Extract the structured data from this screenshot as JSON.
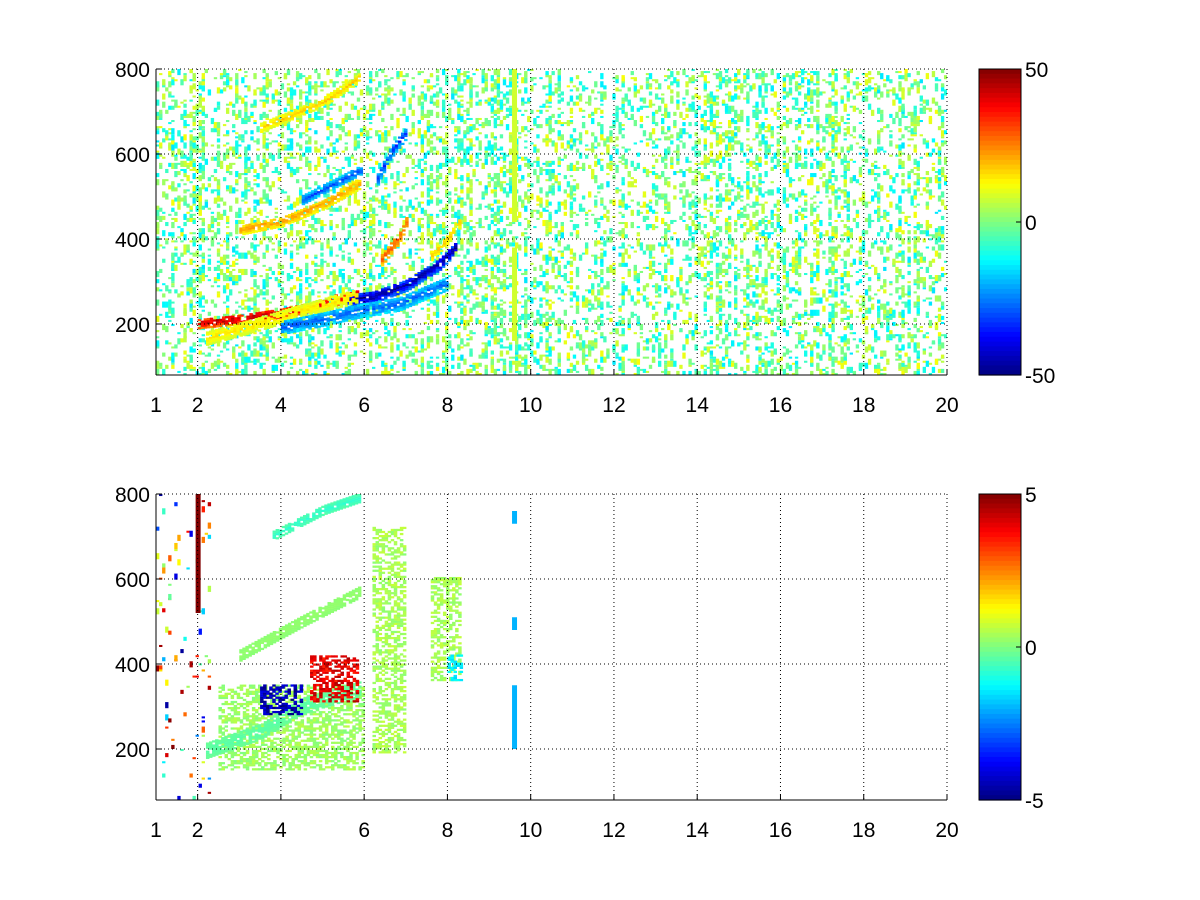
{
  "figure": {
    "background": "#ffffff",
    "colormap": "jet",
    "grid": true,
    "grid_style": "dotted"
  },
  "chart_data": [
    {
      "type": "heatmap",
      "title": "",
      "xlabel": "",
      "ylabel": "",
      "xlim": [
        1,
        20
      ],
      "ylim": [
        80,
        800
      ],
      "xticks": [
        1,
        2,
        4,
        6,
        8,
        10,
        12,
        14,
        16,
        18,
        20
      ],
      "xtick_labels": [
        "1",
        "2",
        "4",
        "6",
        "8",
        "10",
        "12",
        "14",
        "16",
        "18",
        "20"
      ],
      "yticks": [
        200,
        400,
        600,
        800
      ],
      "ytick_labels": [
        "200",
        "400",
        "600",
        "800"
      ],
      "clim": [
        -50,
        50
      ],
      "colorbar": {
        "ticks": [
          50,
          0,
          -50
        ],
        "labels": [
          "50",
          "0",
          "-50"
        ]
      },
      "features": [
        {
          "kind": "band",
          "x": [
            2.0,
            3.0,
            4.0,
            5.0,
            5.9
          ],
          "y": [
            200,
            210,
            225,
            245,
            270
          ],
          "value": 45,
          "width": 12
        },
        {
          "kind": "band",
          "x": [
            5.6,
            6.2,
            7.0,
            7.8,
            8.2
          ],
          "y": [
            255,
            262,
            290,
            340,
            380
          ],
          "value": -48,
          "width": 14
        },
        {
          "kind": "band",
          "x": [
            2.2,
            3.5,
            4.5,
            5.8
          ],
          "y": [
            165,
            200,
            230,
            265
          ],
          "value": 15,
          "width": 16
        },
        {
          "kind": "band",
          "x": [
            4.0,
            5.0,
            5.9,
            6.8,
            8.0
          ],
          "y": [
            190,
            210,
            230,
            245,
            295
          ],
          "value": -28,
          "width": 16
        },
        {
          "kind": "band",
          "x": [
            3.0,
            4.0,
            5.0,
            5.9
          ],
          "y": [
            420,
            440,
            480,
            530
          ],
          "value": 22,
          "width": 12
        },
        {
          "kind": "band",
          "x": [
            4.5,
            5.9
          ],
          "y": [
            490,
            560
          ],
          "value": -30,
          "width": 10
        },
        {
          "kind": "band",
          "x": [
            3.5,
            5.0,
            5.9
          ],
          "y": [
            660,
            720,
            780
          ],
          "value": 18,
          "width": 10
        },
        {
          "kind": "band",
          "x": [
            6.3,
            6.6,
            7.0
          ],
          "y": [
            540,
            600,
            650
          ],
          "value": -32,
          "width": 14
        },
        {
          "kind": "band",
          "x": [
            6.4,
            6.8,
            7.0
          ],
          "y": [
            350,
            400,
            440
          ],
          "value": 30,
          "width": 14
        },
        {
          "kind": "band",
          "x": [
            7.6,
            8.0,
            8.3
          ],
          "y": [
            360,
            400,
            440
          ],
          "value": 18,
          "width": 12
        },
        {
          "kind": "column",
          "x": 9.6,
          "y": [
            440,
            800
          ],
          "value": 8
        },
        {
          "kind": "column",
          "x": 9.6,
          "y": [
            160,
            380
          ],
          "value": 8
        }
      ],
      "noise": {
        "x_range": [
          1,
          20
        ],
        "value_range": [
          -15,
          12
        ],
        "density": 0.14
      }
    },
    {
      "type": "heatmap",
      "title": "",
      "xlabel": "",
      "ylabel": "",
      "xlim": [
        1,
        20
      ],
      "ylim": [
        80,
        800
      ],
      "xticks": [
        1,
        2,
        4,
        6,
        8,
        10,
        12,
        14,
        16,
        18,
        20
      ],
      "xtick_labels": [
        "1",
        "2",
        "4",
        "6",
        "8",
        "10",
        "12",
        "14",
        "16",
        "18",
        "20"
      ],
      "yticks": [
        200,
        400,
        600,
        800
      ],
      "ytick_labels": [
        "200",
        "400",
        "600",
        "800"
      ],
      "clim": [
        -5,
        5
      ],
      "colorbar": {
        "ticks": [
          5,
          0,
          -5
        ],
        "labels": [
          "5",
          "0",
          "-5"
        ]
      },
      "features": [
        {
          "kind": "patch",
          "x": [
            2.5,
            6.0
          ],
          "y": [
            150,
            350
          ],
          "value": 0.3
        },
        {
          "kind": "band",
          "x": [
            2.2,
            3.5,
            4.5,
            5.9
          ],
          "y": [
            195,
            240,
            300,
            340
          ],
          "value": -0.4,
          "width": 18
        },
        {
          "kind": "band",
          "x": [
            3.0,
            4.5,
            5.9
          ],
          "y": [
            420,
            500,
            570
          ],
          "value": 0.2,
          "width": 14
        },
        {
          "kind": "band",
          "x": [
            3.8,
            5.0,
            5.9
          ],
          "y": [
            700,
            760,
            790
          ],
          "value": -0.8,
          "width": 10
        },
        {
          "kind": "patch",
          "x": [
            3.5,
            4.5
          ],
          "y": [
            280,
            350
          ],
          "value": -4.5
        },
        {
          "kind": "patch",
          "x": [
            4.7,
            5.8
          ],
          "y": [
            310,
            420
          ],
          "value": 4
        },
        {
          "kind": "patch",
          "x": [
            6.2,
            7.0
          ],
          "y": [
            190,
            720
          ],
          "value": 0.4
        },
        {
          "kind": "patch",
          "x": [
            7.6,
            8.3
          ],
          "y": [
            360,
            600
          ],
          "value": 0.4
        },
        {
          "kind": "patch",
          "x": [
            8.0,
            8.3
          ],
          "y": [
            360,
            420
          ],
          "value": -1.4
        },
        {
          "kind": "column",
          "x": 9.6,
          "y": [
            200,
            350
          ],
          "value": -2
        },
        {
          "kind": "column",
          "x": 9.6,
          "y": [
            480,
            510
          ],
          "value": -2
        },
        {
          "kind": "column",
          "x": 9.6,
          "y": [
            730,
            760
          ],
          "value": -2
        },
        {
          "kind": "column",
          "x": 2.0,
          "y": [
            520,
            800
          ],
          "value": 5
        }
      ],
      "noise": {
        "x_range": [
          1,
          2.3
        ],
        "value_range": [
          -5,
          5
        ],
        "density": 0.03
      }
    }
  ]
}
